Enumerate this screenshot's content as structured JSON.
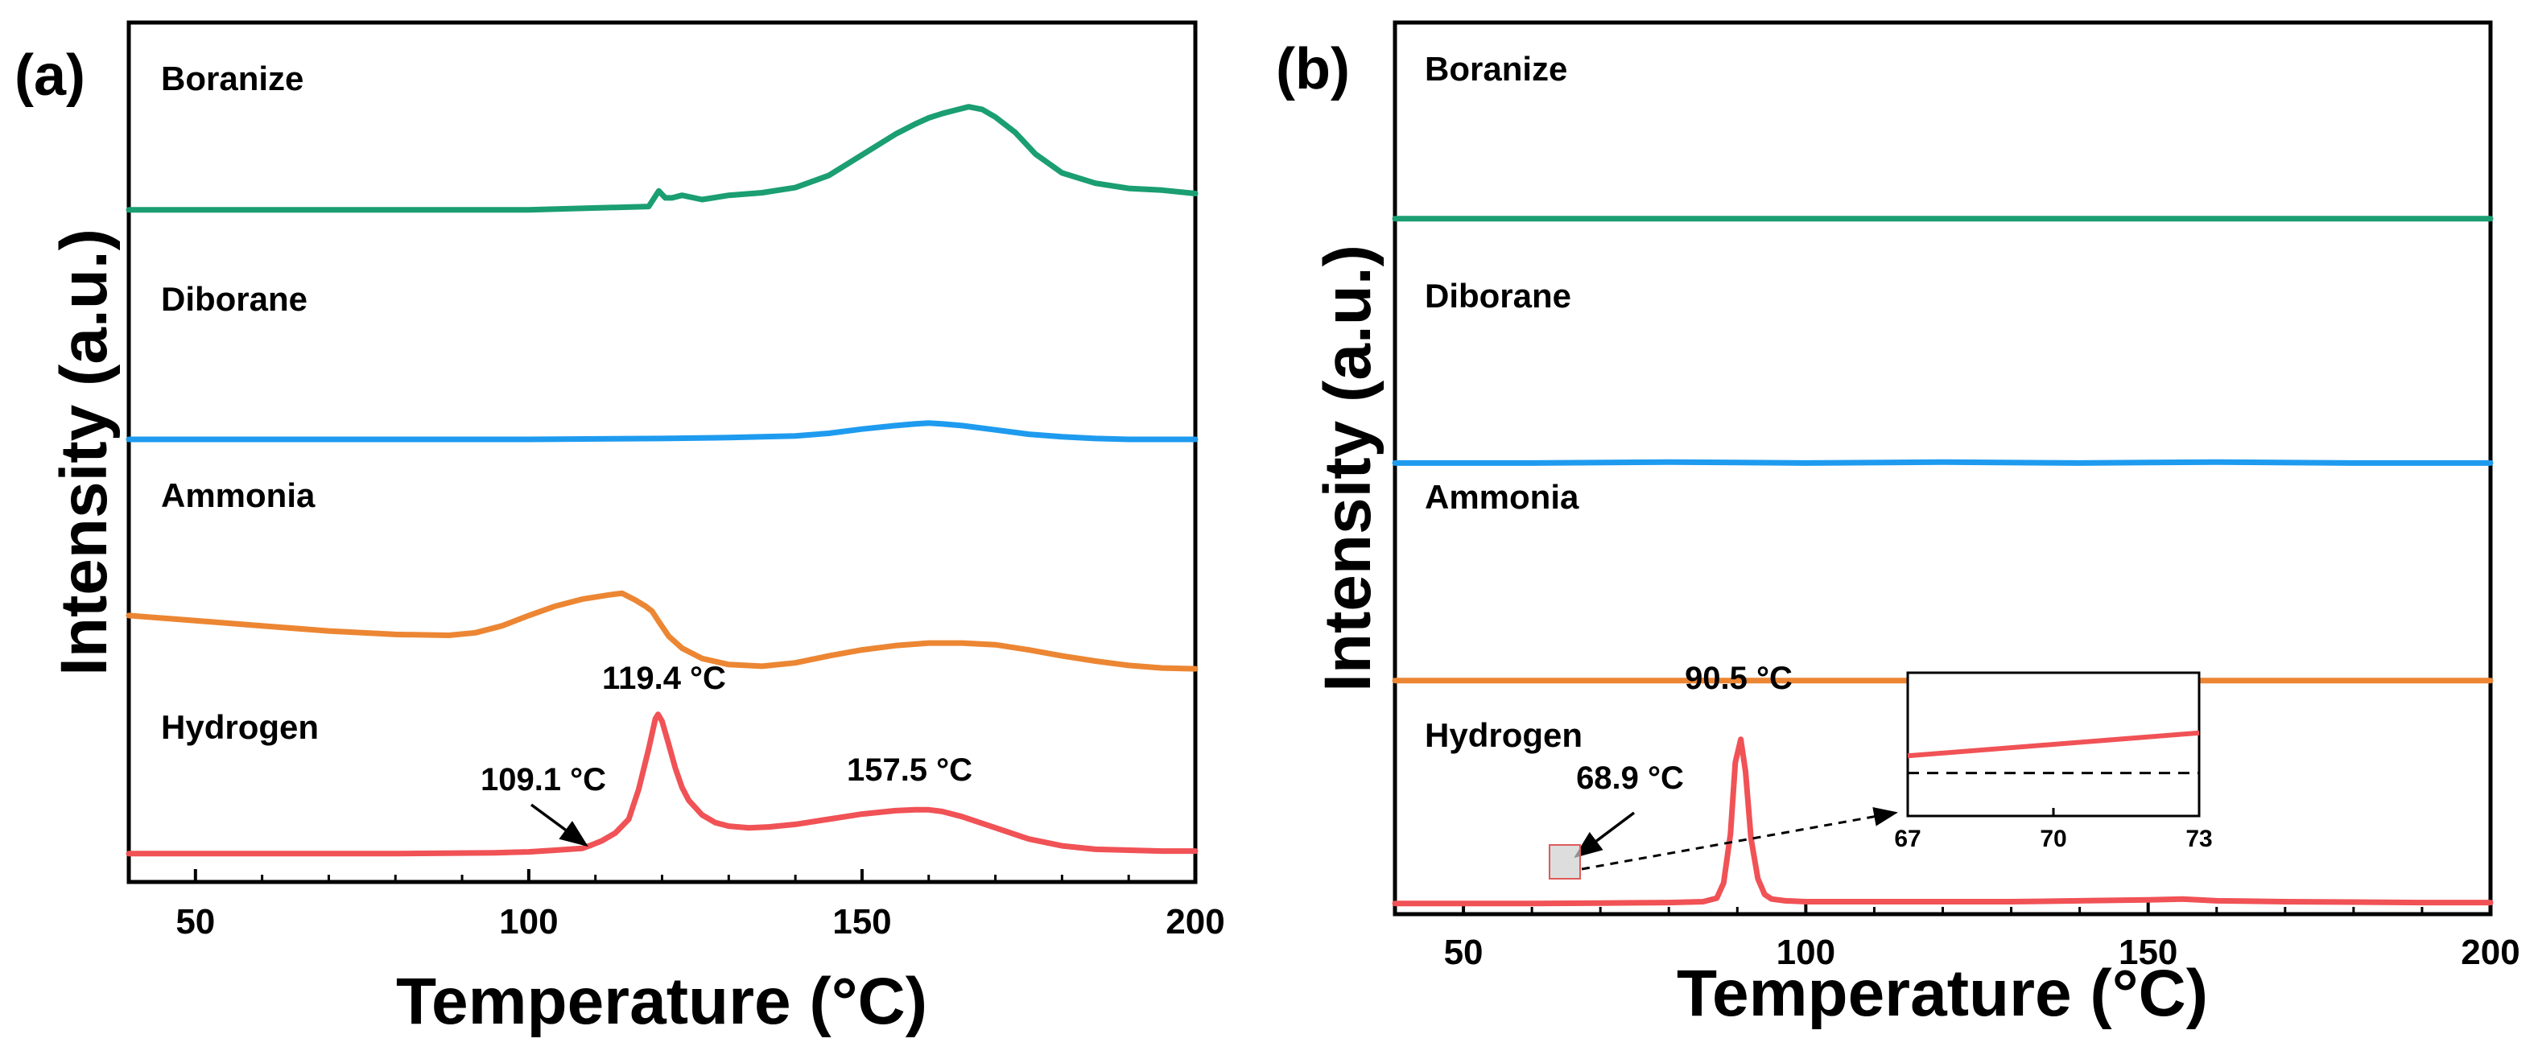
{
  "colors": {
    "boranize": "#1a9e72",
    "diborane": "#1e9bef",
    "ammonia": "#ec8633",
    "hydrogen": "#f05256",
    "axis": "#000000"
  },
  "chart_data": [
    {
      "panel": "(a)",
      "type": "line",
      "xlabel": "Temperature (°C)",
      "ylabel": "Intensity (a.u.)",
      "xlim": [
        40,
        200
      ],
      "ylim": [
        0,
        100
      ],
      "xticks": [
        50,
        100,
        150,
        200
      ],
      "series": [
        {
          "name": "Boranize",
          "color_key": "boranize",
          "x": [
            40,
            100,
            118,
            119.5,
            120.5,
            121.5,
            123,
            126,
            130,
            135,
            140,
            145,
            150,
            155,
            158,
            160,
            162,
            164,
            166,
            168,
            170,
            173,
            176,
            180,
            185,
            190,
            195,
            200
          ],
          "y": [
            78.2,
            78.2,
            78.6,
            80.4,
            79.6,
            79.6,
            79.9,
            79.4,
            79.9,
            80.2,
            80.8,
            82.2,
            84.6,
            87.0,
            88.2,
            88.9,
            89.4,
            89.8,
            90.2,
            89.9,
            89.0,
            87.2,
            84.7,
            82.5,
            81.3,
            80.7,
            80.5,
            80.1
          ]
        },
        {
          "name": "Diborane",
          "color_key": "diborane",
          "x": [
            40,
            100,
            120,
            130,
            140,
            145,
            150,
            155,
            158,
            160,
            162,
            165,
            170,
            175,
            180,
            185,
            190,
            200
          ],
          "y": [
            51.5,
            51.5,
            51.6,
            51.7,
            51.9,
            52.2,
            52.7,
            53.1,
            53.3,
            53.4,
            53.3,
            53.1,
            52.6,
            52.1,
            51.8,
            51.6,
            51.5,
            51.5
          ]
        },
        {
          "name": "Ammonia",
          "color_key": "ammonia",
          "x": [
            40,
            50,
            60,
            70,
            80,
            88,
            92,
            96,
            100,
            104,
            108,
            112,
            114,
            116,
            117.5,
            118.5,
            119.5,
            121,
            123,
            126,
            130,
            135,
            140,
            145,
            150,
            155,
            160,
            165,
            170,
            175,
            180,
            185,
            190,
            195,
            200
          ],
          "y": [
            31.0,
            30.4,
            29.8,
            29.2,
            28.8,
            28.7,
            29.0,
            29.8,
            31.0,
            32.1,
            32.9,
            33.4,
            33.6,
            32.8,
            32.1,
            31.5,
            30.3,
            28.6,
            27.2,
            26.0,
            25.3,
            25.1,
            25.5,
            26.3,
            27.0,
            27.5,
            27.8,
            27.8,
            27.6,
            27.0,
            26.3,
            25.7,
            25.2,
            24.9,
            24.8
          ]
        },
        {
          "name": "Hydrogen",
          "color_key": "hydrogen",
          "x": [
            40,
            60,
            80,
            95,
            100,
            104,
            108,
            109.1,
            111,
            113,
            115,
            116.5,
            118,
            119,
            119.4,
            120,
            121,
            122,
            123,
            124,
            126,
            128,
            130,
            133,
            136,
            140,
            145,
            150,
            155,
            158,
            160,
            162,
            165,
            170,
            175,
            180,
            185,
            190,
            195,
            200
          ],
          "y": [
            3.3,
            3.3,
            3.3,
            3.4,
            3.5,
            3.7,
            3.9,
            4.2,
            4.8,
            5.7,
            7.3,
            10.8,
            15.5,
            19.0,
            19.5,
            18.7,
            16.0,
            13.2,
            11.0,
            9.5,
            7.8,
            6.9,
            6.5,
            6.3,
            6.4,
            6.7,
            7.3,
            7.9,
            8.3,
            8.4,
            8.4,
            8.2,
            7.6,
            6.3,
            5.0,
            4.2,
            3.8,
            3.7,
            3.6,
            3.6
          ]
        }
      ],
      "labels": [
        "Boranize",
        "Diborane",
        "Ammonia",
        "Hydrogen"
      ],
      "annotations": [
        {
          "text": "119.4 °C",
          "x": 119.4
        },
        {
          "text": "157.5 °C",
          "x": 157.5
        },
        {
          "text": "109.1 °C",
          "x": 109.1,
          "arrow": true
        }
      ]
    },
    {
      "panel": "(b)",
      "type": "line",
      "xlabel": "Temperature (°C)",
      "ylabel": "Intensity (a.u.)",
      "xlim": [
        40,
        200
      ],
      "ylim": [
        0,
        100
      ],
      "xticks": [
        50,
        100,
        150,
        200
      ],
      "series": [
        {
          "name": "Boranize",
          "color_key": "boranize",
          "x": [
            40,
            200
          ],
          "y": [
            78.0,
            78.0
          ]
        },
        {
          "name": "Diborane",
          "color_key": "diborane",
          "x": [
            40,
            60,
            80,
            100,
            120,
            140,
            160,
            180,
            200
          ],
          "y": [
            50.6,
            50.6,
            50.7,
            50.6,
            50.7,
            50.6,
            50.7,
            50.6,
            50.6
          ]
        },
        {
          "name": "Ammonia",
          "color_key": "ammonia",
          "x": [
            40,
            200
          ],
          "y": [
            26.2,
            26.2
          ]
        },
        {
          "name": "Hydrogen",
          "color_key": "hydrogen",
          "x": [
            40,
            60,
            70,
            80,
            85,
            87,
            88,
            89,
            89.7,
            90.5,
            91.2,
            92,
            93,
            94,
            95,
            97,
            100,
            110,
            120,
            130,
            140,
            150,
            155,
            160,
            170,
            180,
            190,
            200
          ],
          "y": [
            1.2,
            1.2,
            1.25,
            1.3,
            1.4,
            1.8,
            3.5,
            9.0,
            17.0,
            19.6,
            16.0,
            8.5,
            4.0,
            2.2,
            1.7,
            1.5,
            1.4,
            1.4,
            1.4,
            1.4,
            1.5,
            1.6,
            1.7,
            1.5,
            1.4,
            1.35,
            1.3,
            1.3
          ]
        }
      ],
      "labels": [
        "Boranize",
        "Diborane",
        "Ammonia",
        "Hydrogen"
      ],
      "annotations": [
        {
          "text": "90.5 °C",
          "x": 90.5
        },
        {
          "text": "68.9 °C",
          "x": 68.9,
          "arrow": true
        }
      ],
      "inset": {
        "xlim": [
          67,
          73
        ],
        "xticks": [
          67,
          70,
          73
        ],
        "series": {
          "x": [
            67,
            73
          ],
          "y": [
            0.42,
            0.58
          ]
        },
        "reference_line": {
          "y": 0.3,
          "style": "dashed"
        }
      }
    }
  ]
}
